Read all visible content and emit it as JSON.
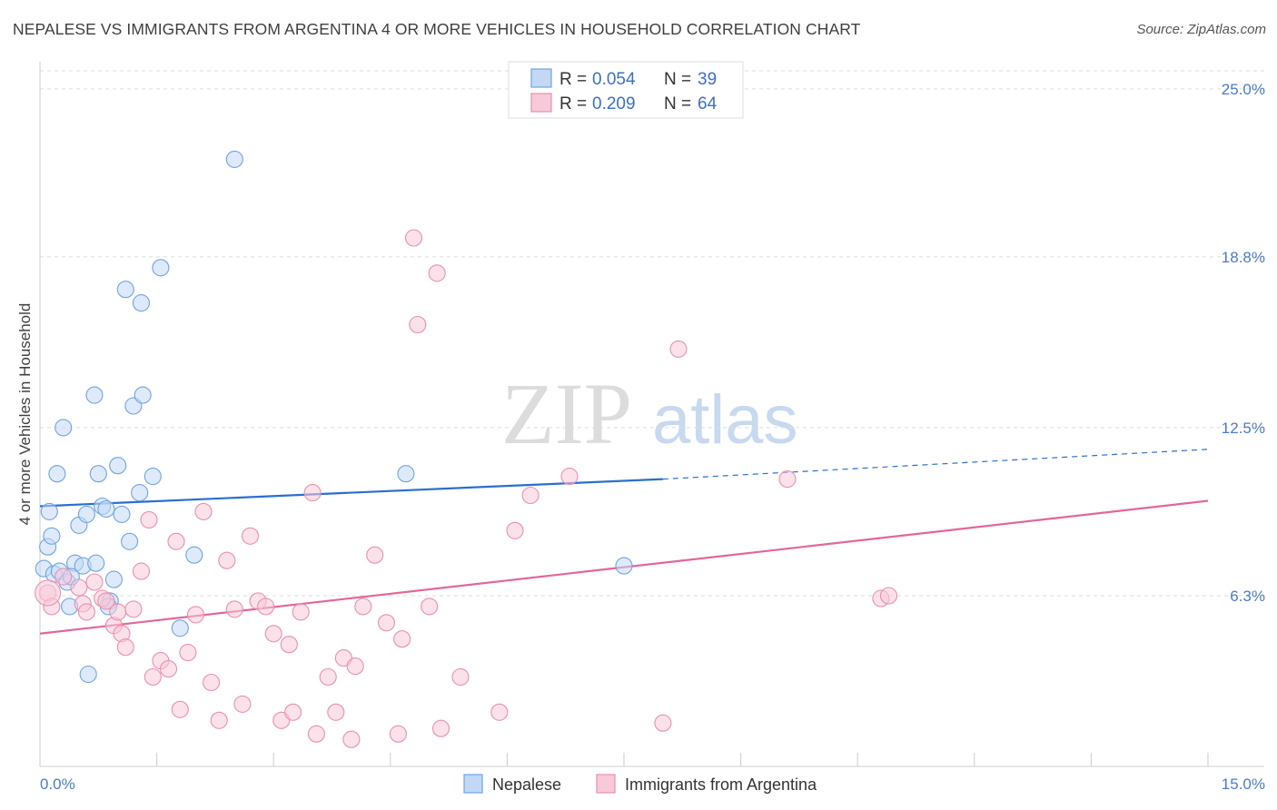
{
  "title": "NEPALESE VS IMMIGRANTS FROM ARGENTINA 4 OR MORE VEHICLES IN HOUSEHOLD CORRELATION CHART",
  "source": "Source: ZipAtlas.com",
  "watermark": {
    "zip": "ZIP",
    "atlas": "atlas"
  },
  "chart_data": {
    "type": "scatter",
    "title": "NEPALESE VS IMMIGRANTS FROM ARGENTINA 4 OR MORE VEHICLES IN HOUSEHOLD CORRELATION CHART",
    "xlabel": "",
    "ylabel": "4 or more Vehicles in Household",
    "xlim": [
      0,
      15
    ],
    "ylim": [
      0,
      26
    ],
    "x_tick_labels": [
      {
        "value": 0,
        "label": "0.0%"
      },
      {
        "value": 15,
        "label": "15.0%"
      }
    ],
    "y_ticks": [
      {
        "value": 6.3,
        "label": "6.3%"
      },
      {
        "value": 12.5,
        "label": "12.5%"
      },
      {
        "value": 18.8,
        "label": "18.8%"
      },
      {
        "value": 25.0,
        "label": "25.0%"
      }
    ],
    "grid": true,
    "legend_position": "top-center",
    "series": [
      {
        "name": "Nepalese",
        "color": "#6fa3e3",
        "fill": "#c2d8f5",
        "R": "0.054",
        "N": "39",
        "r_label": "R = ",
        "n_label": "N = ",
        "trend": {
          "x0": 0,
          "y0": 9.6,
          "x1": 8.0,
          "y1": 10.6,
          "dash_to_x": 15,
          "dash_to_y": 11.7,
          "color": "#2a6fd0"
        },
        "points": [
          [
            0.05,
            7.3
          ],
          [
            0.1,
            8.1
          ],
          [
            0.12,
            9.4
          ],
          [
            0.18,
            7.1
          ],
          [
            0.22,
            10.8
          ],
          [
            0.25,
            7.2
          ],
          [
            0.3,
            12.5
          ],
          [
            0.35,
            6.8
          ],
          [
            0.38,
            5.9
          ],
          [
            0.45,
            7.5
          ],
          [
            0.5,
            8.9
          ],
          [
            0.55,
            7.4
          ],
          [
            0.6,
            9.3
          ],
          [
            0.7,
            13.7
          ],
          [
            0.75,
            10.8
          ],
          [
            0.8,
            9.6
          ],
          [
            0.85,
            9.5
          ],
          [
            0.9,
            6.1
          ],
          [
            0.95,
            6.9
          ],
          [
            1.0,
            11.1
          ],
          [
            1.05,
            9.3
          ],
          [
            1.1,
            17.6
          ],
          [
            1.15,
            8.3
          ],
          [
            1.2,
            13.3
          ],
          [
            1.28,
            10.1
          ],
          [
            1.3,
            17.1
          ],
          [
            1.32,
            13.7
          ],
          [
            1.45,
            10.7
          ],
          [
            1.55,
            18.4
          ],
          [
            1.8,
            5.1
          ],
          [
            1.98,
            7.8
          ],
          [
            2.5,
            22.4
          ],
          [
            0.62,
            3.4
          ],
          [
            4.7,
            10.8
          ],
          [
            7.5,
            7.4
          ],
          [
            0.15,
            8.5
          ],
          [
            0.4,
            7.0
          ],
          [
            0.72,
            7.5
          ],
          [
            0.88,
            5.9
          ]
        ]
      },
      {
        "name": "Immigrants from Argentina",
        "color": "#e890ac",
        "fill": "#f8c9d8",
        "R": "0.209",
        "N": "64",
        "r_label": "R = ",
        "n_label": "N = ",
        "trend": {
          "x0": 0,
          "y0": 4.9,
          "x1": 15,
          "y1": 9.8,
          "color": "#e2679a"
        },
        "points": [
          [
            0.1,
            6.4
          ],
          [
            0.15,
            5.9
          ],
          [
            0.3,
            7.0
          ],
          [
            0.5,
            6.6
          ],
          [
            0.55,
            6.0
          ],
          [
            0.6,
            5.7
          ],
          [
            0.7,
            6.8
          ],
          [
            0.8,
            6.2
          ],
          [
            0.85,
            6.1
          ],
          [
            0.95,
            5.2
          ],
          [
            1.0,
            5.7
          ],
          [
            1.05,
            4.9
          ],
          [
            1.1,
            4.4
          ],
          [
            1.2,
            5.8
          ],
          [
            1.3,
            7.2
          ],
          [
            1.4,
            9.1
          ],
          [
            1.45,
            3.3
          ],
          [
            1.55,
            3.9
          ],
          [
            1.65,
            3.6
          ],
          [
            1.75,
            8.3
          ],
          [
            1.8,
            2.1
          ],
          [
            1.9,
            4.2
          ],
          [
            2.0,
            5.6
          ],
          [
            2.1,
            9.4
          ],
          [
            2.2,
            3.1
          ],
          [
            2.3,
            1.7
          ],
          [
            2.4,
            7.6
          ],
          [
            2.5,
            5.8
          ],
          [
            2.6,
            2.3
          ],
          [
            2.7,
            8.5
          ],
          [
            2.8,
            6.1
          ],
          [
            2.9,
            5.9
          ],
          [
            3.0,
            4.9
          ],
          [
            3.1,
            1.7
          ],
          [
            3.2,
            4.5
          ],
          [
            3.25,
            2.0
          ],
          [
            3.35,
            5.7
          ],
          [
            3.5,
            10.1
          ],
          [
            3.55,
            1.2
          ],
          [
            3.7,
            3.3
          ],
          [
            3.8,
            2.0
          ],
          [
            3.9,
            4.0
          ],
          [
            4.0,
            1.0
          ],
          [
            4.05,
            3.7
          ],
          [
            4.15,
            5.9
          ],
          [
            4.3,
            7.8
          ],
          [
            4.45,
            5.3
          ],
          [
            4.6,
            1.2
          ],
          [
            4.65,
            4.7
          ],
          [
            4.8,
            19.5
          ],
          [
            4.85,
            16.3
          ],
          [
            5.0,
            5.9
          ],
          [
            5.1,
            18.2
          ],
          [
            5.15,
            1.4
          ],
          [
            5.4,
            3.3
          ],
          [
            5.9,
            2.0
          ],
          [
            6.1,
            8.7
          ],
          [
            6.3,
            10.0
          ],
          [
            6.8,
            10.7
          ],
          [
            8.0,
            1.6
          ],
          [
            8.2,
            15.4
          ],
          [
            9.6,
            10.6
          ],
          [
            10.8,
            6.2
          ],
          [
            10.9,
            6.3
          ]
        ]
      }
    ]
  }
}
